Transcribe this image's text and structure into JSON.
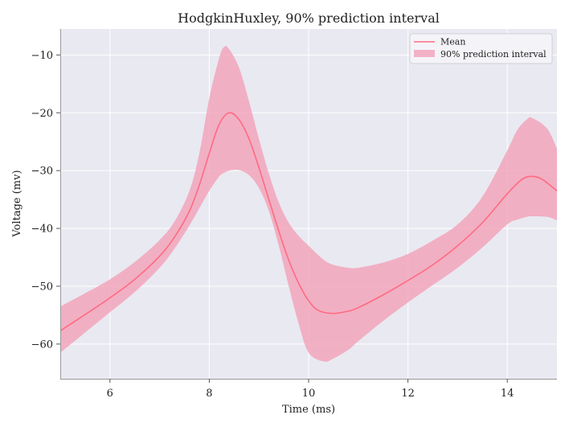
{
  "chart_data": {
    "type": "area",
    "title": "HodgkinHuxley, 90% prediction interval",
    "xlabel": "Time (ms)",
    "ylabel": "Voltage (mv)",
    "xlim": [
      5,
      15
    ],
    "ylim": [
      -66,
      -5.5
    ],
    "xticks": [
      6,
      8,
      10,
      12,
      14
    ],
    "yticks": [
      -10,
      -20,
      -30,
      -40,
      -50,
      -60
    ],
    "grid": true,
    "legend_position": "top-right",
    "colors": {
      "line": "#ff6b81",
      "band": "#f2a0b8",
      "background": "#e9e9f1",
      "grid": "#ffffff"
    },
    "series": [
      {
        "name": "Mean",
        "kind": "line",
        "x": [
          5.0,
          5.5,
          6.0,
          6.5,
          7.0,
          7.3,
          7.6,
          7.8,
          8.0,
          8.2,
          8.4,
          8.6,
          8.8,
          9.0,
          9.2,
          9.4,
          9.6,
          9.8,
          10.0,
          10.2,
          10.5,
          10.8,
          11.0,
          11.5,
          12.0,
          12.5,
          13.0,
          13.5,
          14.0,
          14.3,
          14.5,
          14.7,
          15.0
        ],
        "y": [
          -57.7,
          -54.9,
          -52.0,
          -48.8,
          -44.8,
          -41.5,
          -37.0,
          -32.5,
          -27.0,
          -22.0,
          -20.0,
          -21.2,
          -24.5,
          -29.5,
          -35.0,
          -40.5,
          -45.5,
          -49.5,
          -52.5,
          -54.2,
          -54.7,
          -54.3,
          -53.7,
          -51.5,
          -49.0,
          -46.3,
          -43.0,
          -39.0,
          -34.0,
          -31.5,
          -31.0,
          -31.5,
          -33.5
        ]
      },
      {
        "name": "90% prediction interval",
        "kind": "band",
        "x": [
          5.0,
          5.5,
          6.0,
          6.5,
          7.0,
          7.3,
          7.6,
          7.8,
          8.0,
          8.2,
          8.3,
          8.4,
          8.6,
          8.8,
          9.0,
          9.2,
          9.4,
          9.6,
          9.8,
          10.0,
          10.3,
          10.5,
          10.8,
          11.0,
          11.5,
          12.0,
          12.5,
          13.0,
          13.5,
          14.0,
          14.2,
          14.4,
          14.5,
          14.8,
          15.0
        ],
        "lower": [
          -61.5,
          -58.0,
          -54.5,
          -51.0,
          -46.8,
          -43.5,
          -39.5,
          -36.5,
          -33.5,
          -31.0,
          -30.4,
          -30.0,
          -29.9,
          -30.8,
          -33.0,
          -37.0,
          -43.0,
          -50.0,
          -56.5,
          -61.5,
          -63.0,
          -62.5,
          -61.0,
          -59.5,
          -56.0,
          -52.8,
          -49.8,
          -46.8,
          -43.3,
          -39.3,
          -38.5,
          -38.0,
          -37.9,
          -38.0,
          -38.6
        ],
        "upper": [
          -53.5,
          -51.2,
          -48.8,
          -45.8,
          -42.0,
          -38.8,
          -33.5,
          -27.0,
          -17.5,
          -10.5,
          -8.6,
          -9.0,
          -12.2,
          -18.0,
          -24.5,
          -30.5,
          -35.5,
          -39.0,
          -41.3,
          -43.0,
          -45.4,
          -46.3,
          -46.8,
          -46.8,
          -45.9,
          -44.4,
          -42.1,
          -39.3,
          -34.5,
          -26.5,
          -23.0,
          -21.1,
          -20.9,
          -22.7,
          -26.2
        ]
      }
    ]
  }
}
